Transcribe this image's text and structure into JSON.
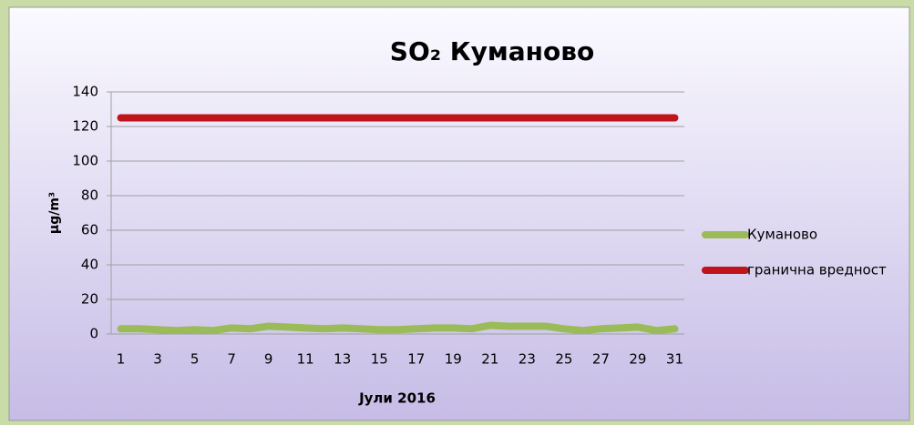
{
  "chart_data": {
    "type": "line",
    "title": "SO₂ Куманово",
    "y_label": "µg/m³",
    "x_label": "Јули 2016",
    "categories": [
      1,
      null,
      3,
      null,
      5,
      null,
      7,
      null,
      9,
      null,
      11,
      null,
      13,
      null,
      15,
      null,
      17,
      null,
      19,
      null,
      21,
      null,
      23,
      null,
      25,
      null,
      27,
      null,
      29,
      null,
      31
    ],
    "series": [
      {
        "name": "Куманово",
        "color": "#9bbb59",
        "values": [
          3,
          3,
          2.5,
          2,
          2.5,
          2,
          3.5,
          3,
          4.5,
          4,
          3.5,
          3,
          3.5,
          3,
          2.5,
          2.5,
          3,
          3.5,
          3.5,
          3,
          5,
          4.5,
          4.5,
          4.5,
          3,
          2,
          3,
          3.5,
          4,
          2,
          3
        ]
      },
      {
        "name": "гранична вредност",
        "color": "#c0141c",
        "values": [
          125,
          125,
          125,
          125,
          125,
          125,
          125,
          125,
          125,
          125,
          125,
          125,
          125,
          125,
          125,
          125,
          125,
          125,
          125,
          125,
          125,
          125,
          125,
          125,
          125,
          125,
          125,
          125,
          125,
          125,
          125
        ]
      }
    ],
    "ylim": [
      0,
      140
    ],
    "yticks": [
      0,
      20,
      40,
      60,
      80,
      100,
      120,
      140
    ],
    "grid": true,
    "legend": "right"
  }
}
